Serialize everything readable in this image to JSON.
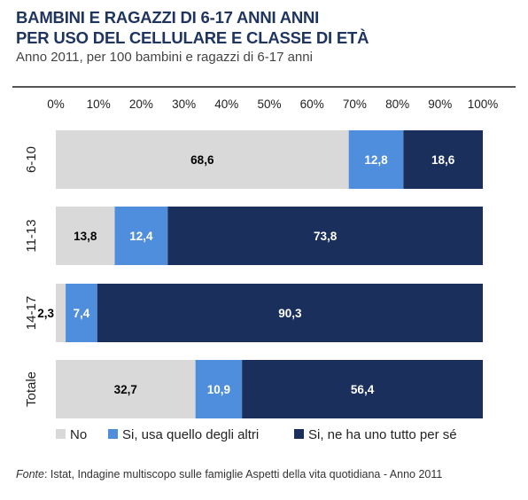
{
  "header": {
    "title_line1": "BAMBINI E RAGAZZI DI 6-17 ANNI ANNI",
    "title_line2": "PER USO DEL CELLULARE E CLASSE DI ETÀ",
    "subtitle": "Anno 2011, per 100 bambini e ragazzi di 6-17 anni"
  },
  "source": {
    "label": "Fonte",
    "text": ": Istat, Indagine multiscopo sulle famiglie Aspetti della vita quotidiana - Anno 2011"
  },
  "chart_data": {
    "type": "bar",
    "orientation": "horizontal",
    "stacked": true,
    "title": "BAMBINI E RAGAZZI DI 6-17 ANNI ANNI PER USO DEL CELLULARE E CLASSE DI ETÀ",
    "subtitle": "Anno 2011, per 100 bambini e ragazzi di 6-17 anni",
    "categories": [
      "6-10",
      "11-13",
      "14-17",
      "Totale"
    ],
    "x_ticks": [
      "0%",
      "10%",
      "20%",
      "30%",
      "40%",
      "50%",
      "60%",
      "70%",
      "80%",
      "90%",
      "100%"
    ],
    "xlim": [
      0,
      100
    ],
    "axis_position": "top",
    "legend_position": "bottom",
    "grid": false,
    "series": [
      {
        "name": "No",
        "color": "#d9d9d9",
        "text_color": "#000000",
        "values": [
          68.6,
          13.8,
          2.3,
          32.7
        ],
        "labels": [
          "68,6",
          "13,8",
          "2,3",
          "32,7"
        ]
      },
      {
        "name": "Si, usa quello degli altri",
        "color": "#4f8edc",
        "text_color": "#ffffff",
        "values": [
          12.8,
          12.4,
          7.4,
          10.9
        ],
        "labels": [
          "12,8",
          "12,4",
          "7,4",
          "10,9"
        ]
      },
      {
        "name": "Si, ne ha uno tutto per sé",
        "color": "#1a2f5c",
        "text_color": "#ffffff",
        "values": [
          18.6,
          73.8,
          90.3,
          56.4
        ],
        "labels": [
          "18,6",
          "73,8",
          "90,3",
          "56,4"
        ]
      }
    ]
  }
}
